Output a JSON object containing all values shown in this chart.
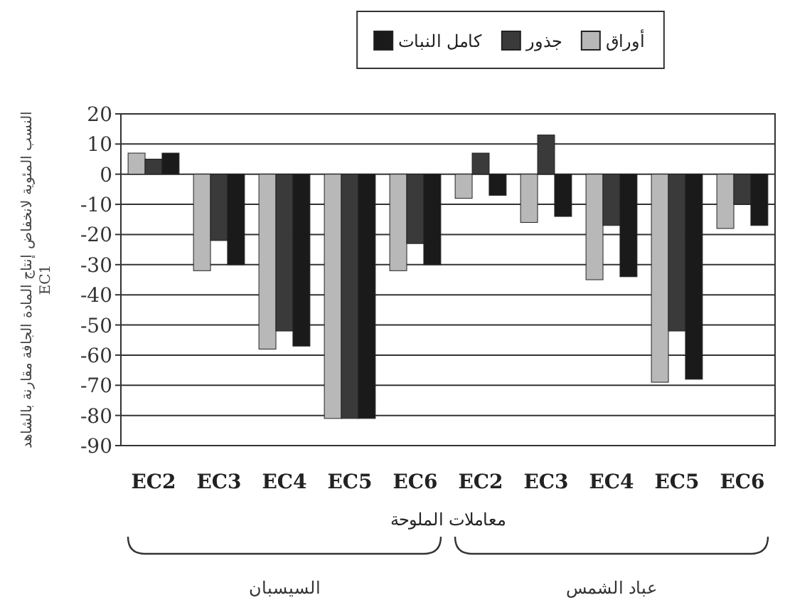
{
  "chart_data": {
    "type": "bar",
    "ylabel": "النسب المئوية لانخفاض إنتاج المادة الجافة مقارنة بالشاهد EC1",
    "xlabel": "معاملات الملوحة",
    "categories": [
      "EC2",
      "EC3",
      "EC4",
      "EC5",
      "EC6",
      "EC2",
      "EC3",
      "EC4",
      "EC5",
      "EC6"
    ],
    "series": [
      {
        "name": "أوراق",
        "color": "#b8b8b8",
        "values": [
          7,
          -32,
          -58,
          -81,
          -32,
          -8,
          -16,
          -35,
          -69,
          -18
        ]
      },
      {
        "name": "جذور",
        "color": "#3a3a3a",
        "values": [
          5,
          -22,
          -52,
          -81,
          -23,
          7,
          13,
          -17,
          -52,
          -10
        ]
      },
      {
        "name": "كامل النبات",
        "color": "#1a1a1a",
        "values": [
          7,
          -30,
          -57,
          -81,
          -30,
          -7,
          -14,
          -34,
          -68,
          -17
        ]
      }
    ],
    "ylim": [
      -90,
      20
    ],
    "yticks": [
      -90,
      -80,
      -70,
      -60,
      -50,
      -40,
      -30,
      -20,
      -10,
      0,
      10,
      20
    ],
    "grid": "y",
    "legend": "top",
    "annotations": [
      "السيسبان",
      "عباد الشمس"
    ]
  }
}
